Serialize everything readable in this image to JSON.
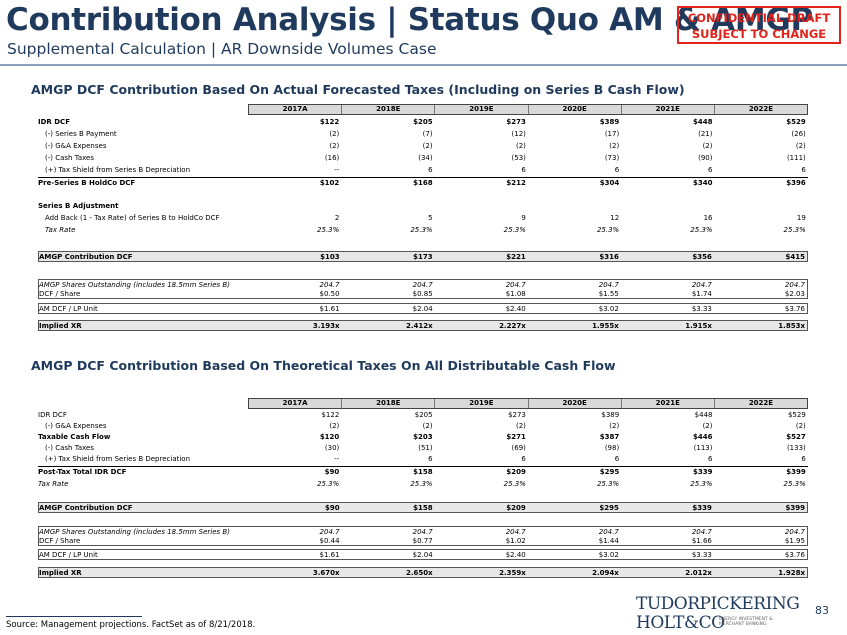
{
  "header": {
    "title": "Contribution Analysis | Status Quo AM & AMGP",
    "subtitle": "Supplemental Calculation | AR Downside Volumes Case",
    "confidential_line1": "CONFIDENTIAL DRAFT",
    "confidential_line2": "SUBJECT TO CHANGE"
  },
  "years": [
    "2017A",
    "2018E",
    "2019E",
    "2020E",
    "2021E",
    "2022E"
  ],
  "table1": {
    "heading": "AMGP DCF Contribution Based On Actual Forecasted Taxes (Including on Series B Cash Flow)",
    "rows": [
      {
        "label": "IDR DCF",
        "values": [
          "$122",
          "$205",
          "$273",
          "$389",
          "$448",
          "$529"
        ]
      },
      {
        "label": "(-) Series B Payment",
        "values": [
          "(2)",
          "(7)",
          "(12)",
          "(17)",
          "(21)",
          "(26)"
        ]
      },
      {
        "label": "(-) G&A Expenses",
        "values": [
          "(2)",
          "(2)",
          "(2)",
          "(2)",
          "(2)",
          "(2)"
        ]
      },
      {
        "label": "(-) Cash Taxes",
        "values": [
          "(16)",
          "(34)",
          "(53)",
          "(73)",
          "(90)",
          "(111)"
        ]
      },
      {
        "label": "(+) Tax Shield from Series B Depreciation",
        "values": [
          "--",
          "6",
          "6",
          "6",
          "6",
          "6"
        ]
      },
      {
        "label": "Pre-Series B HoldCo DCF",
        "values": [
          "$102",
          "$168",
          "$212",
          "$304",
          "$340",
          "$396"
        ]
      },
      {
        "label": "Series B Adjustment",
        "values": [
          "",
          "",
          "",
          "",
          "",
          ""
        ]
      },
      {
        "label": "Add Back (1 - Tax Rate) of Series B to HoldCo DCF",
        "values": [
          "2",
          "5",
          "9",
          "12",
          "16",
          "19"
        ]
      },
      {
        "label": "Tax Rate",
        "values": [
          "25.3%",
          "25.3%",
          "25.3%",
          "25.3%",
          "25.3%",
          "25.3%"
        ]
      },
      {
        "label": "AMGP Contribution DCF",
        "values": [
          "$103",
          "$173",
          "$221",
          "$316",
          "$356",
          "$415"
        ]
      },
      {
        "label": "AMGP Shares Outstanding (includes 18.5mm Series B)",
        "values": [
          "204.7",
          "204.7",
          "204.7",
          "204.7",
          "204.7",
          "204.7"
        ]
      },
      {
        "label": "DCF / Share",
        "values": [
          "$0.50",
          "$0.85",
          "$1.08",
          "$1.55",
          "$1.74",
          "$2.03"
        ]
      },
      {
        "label": "AM DCF / LP Unit",
        "values": [
          "$1.61",
          "$2.04",
          "$2.40",
          "$3.02",
          "$3.33",
          "$3.76"
        ]
      },
      {
        "label": "Implied XR",
        "values": [
          "3.193x",
          "2.412x",
          "2.227x",
          "1.955x",
          "1.915x",
          "1.853x"
        ]
      }
    ]
  },
  "table2": {
    "heading": "AMGP DCF Contribution Based On Theoretical Taxes On All Distributable Cash Flow",
    "rows": [
      {
        "label": "IDR DCF",
        "values": [
          "$122",
          "$205",
          "$273",
          "$389",
          "$448",
          "$529"
        ]
      },
      {
        "label": "(-) G&A Expenses",
        "values": [
          "(2)",
          "(2)",
          "(2)",
          "(2)",
          "(2)",
          "(2)"
        ]
      },
      {
        "label": "Taxable Cash Flow",
        "values": [
          "$120",
          "$203",
          "$271",
          "$387",
          "$446",
          "$527"
        ]
      },
      {
        "label": "(-) Cash Taxes",
        "values": [
          "(30)",
          "(51)",
          "(69)",
          "(98)",
          "(113)",
          "(133)"
        ]
      },
      {
        "label": "(+) Tax Shield from Series B Depreciation",
        "values": [
          "--",
          "6",
          "6",
          "6",
          "6",
          "6"
        ]
      },
      {
        "label": "Post-Tax Total IDR DCF",
        "values": [
          "$90",
          "$158",
          "$209",
          "$295",
          "$339",
          "$399"
        ]
      },
      {
        "label": "Tax Rate",
        "values": [
          "25.3%",
          "25.3%",
          "25.3%",
          "25.3%",
          "25.3%",
          "25.3%"
        ]
      },
      {
        "label": "AMGP Contribution DCF",
        "values": [
          "$90",
          "$158",
          "$209",
          "$295",
          "$339",
          "$399"
        ]
      },
      {
        "label": "AMGP Shares Outstanding (includes 18.5mm Series B)",
        "values": [
          "204.7",
          "204.7",
          "204.7",
          "204.7",
          "204.7",
          "204.7"
        ]
      },
      {
        "label": "DCF / Share",
        "values": [
          "$0.44",
          "$0.77",
          "$1.02",
          "$1.44",
          "$1.66",
          "$1.95"
        ]
      },
      {
        "label": "AM DCF / LP Unit",
        "values": [
          "$1.61",
          "$2.04",
          "$2.40",
          "$3.02",
          "$3.33",
          "$3.76"
        ]
      },
      {
        "label": "Implied XR",
        "values": [
          "3.670x",
          "2.650x",
          "2.359x",
          "2.094x",
          "2.012x",
          "1.928x"
        ]
      }
    ]
  },
  "footer": {
    "source": "Source: Management projections. FactSet as of 8/21/2018.",
    "page_number": "83",
    "logo_line1": "TUDORPICKERING",
    "logo_line2": "HOLT&CO",
    "logo_tagline": "ENERGY INVESTMENT & MERCHANT BANKING"
  }
}
